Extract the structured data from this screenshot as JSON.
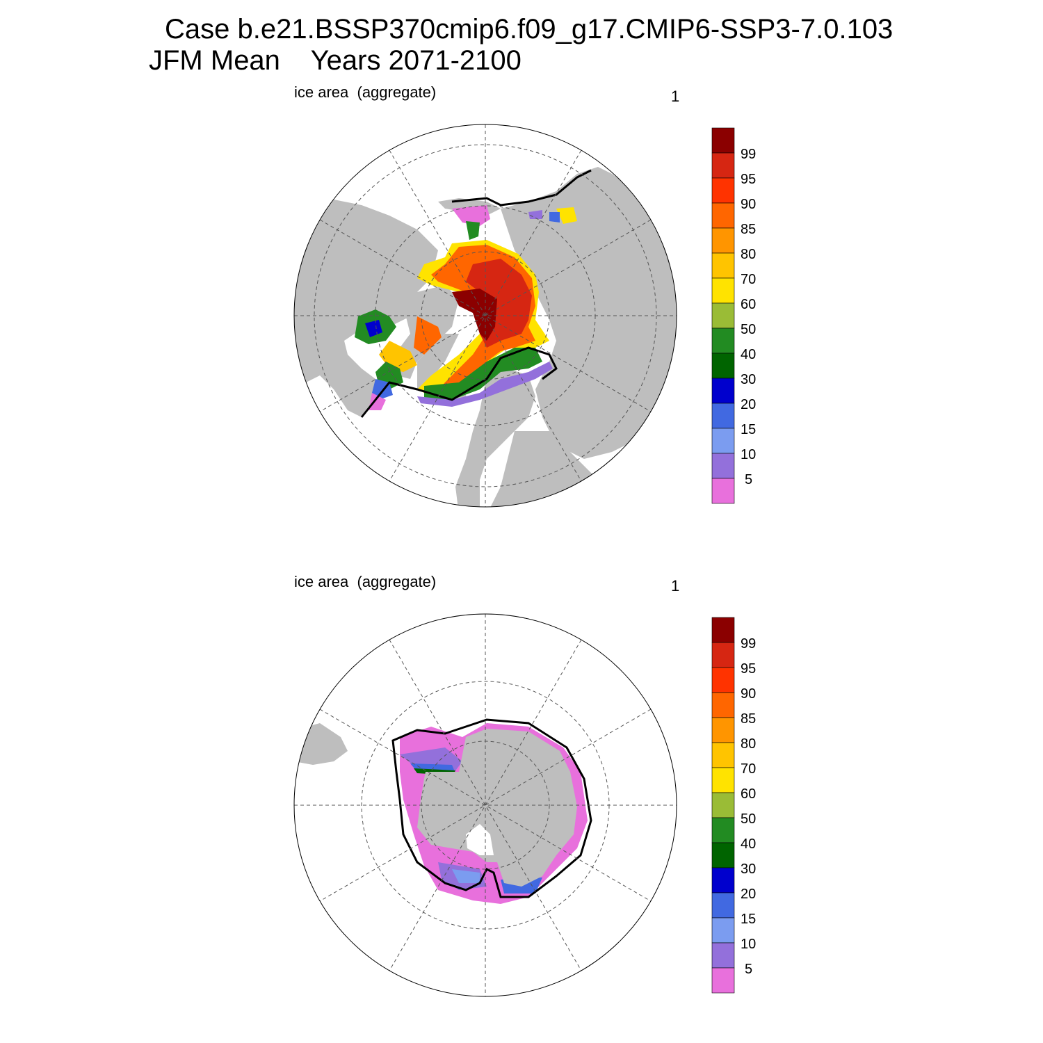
{
  "header": {
    "title_line1": "Case b.e21.BSSP370cmip6.f09_g17.CMIP6-SSP3-7.0.103",
    "title_line2": "JFM Mean    Years 2071-2100"
  },
  "colors": {
    "land": "#bebebe",
    "ocean": "#ffffff",
    "grid": "#555555",
    "contour": "#000000"
  },
  "colorbar": {
    "labels": [
      "99",
      "95",
      "90",
      "85",
      "80",
      "70",
      "60",
      "50",
      "40",
      "30",
      "20",
      "15",
      "10",
      "5"
    ],
    "colors": [
      "#8b0000",
      "#d62612",
      "#ff3300",
      "#ff6600",
      "#ff9500",
      "#ffc400",
      "#ffe300",
      "#9abc36",
      "#228b22",
      "#006400",
      "#0000cd",
      "#4169e1",
      "#7b9cf0",
      "#9370db",
      "#e870dc"
    ]
  },
  "panels": [
    {
      "id": "north",
      "title": "ice area  (aggregate)",
      "label_right": "1",
      "map_icon": "arctic-sea-ice-map"
    },
    {
      "id": "south",
      "title": "ice area  (aggregate)",
      "label_right": "1",
      "map_icon": "antarctic-sea-ice-map"
    }
  ]
}
